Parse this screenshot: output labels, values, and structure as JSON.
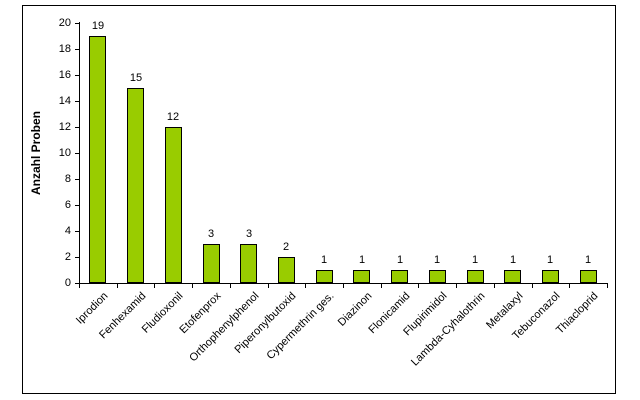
{
  "chart_data": {
    "type": "bar",
    "title": "",
    "xlabel": "",
    "ylabel": "Anzahl Proben",
    "categories": [
      "Iprodion",
      "Fenhexamid",
      "Fludioxonil",
      "Etofenprox",
      "Orthophenylphenol",
      "Piperonylbutoxid",
      "Cypermethrin ges.",
      "Diazinon",
      "Flonicamid",
      "Flupirimidol",
      "Lambda-Cyhalothrin",
      "Metalaxyl",
      "Tebuconazol",
      "Thiacloprid"
    ],
    "values": [
      19,
      15,
      12,
      3,
      3,
      2,
      1,
      1,
      1,
      1,
      1,
      1,
      1,
      1
    ],
    "ylim": [
      0,
      20
    ],
    "ytick_step": 2,
    "grid": false,
    "legend": false,
    "data_labels": true,
    "x_label_rotation_deg": 45,
    "colors": {
      "bar_fill": "#99CC00",
      "bar_border": "#000000",
      "axis": "#000000",
      "text": "#000000",
      "chart_border": "#000000",
      "background": "#FFFFFF"
    }
  }
}
